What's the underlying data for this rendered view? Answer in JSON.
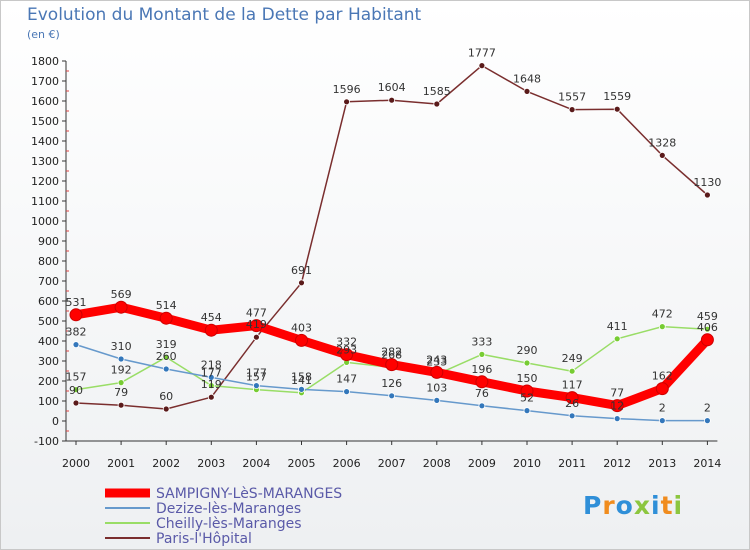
{
  "chart_data": {
    "type": "line",
    "title": "Evolution du Montant de la Dette par Habitant",
    "ylabel": "(en €)",
    "xlabel": "",
    "x": [
      "2000",
      "2001",
      "2002",
      "2003",
      "2004",
      "2005",
      "2006",
      "2007",
      "2008",
      "2009",
      "2010",
      "2011",
      "2012",
      "2013",
      "2014"
    ],
    "ylim": [
      -100,
      1800
    ],
    "yticks": [
      -100,
      0,
      100,
      200,
      300,
      400,
      500,
      600,
      700,
      800,
      900,
      1000,
      1100,
      1200,
      1300,
      1400,
      1500,
      1600,
      1700,
      1800
    ],
    "grid": false,
    "legend_position": "bottom-left",
    "series": [
      {
        "name": "SAMPIGNY-LèS-MARANGES",
        "color": "#ff0000",
        "marker": "#cc0000",
        "values": [
          531,
          569,
          514,
          454,
          477,
          403,
          332,
          282,
          243,
          196,
          150,
          117,
          77,
          162,
          406
        ]
      },
      {
        "name": "Dezize-lès-Maranges",
        "color": "#6699cc",
        "marker": "#3377bb",
        "values": [
          382,
          310,
          260,
          218,
          177,
          158,
          147,
          126,
          103,
          76,
          52,
          26,
          12,
          2,
          2
        ]
      },
      {
        "name": "Cheilly-lès-Maranges",
        "color": "#99dd66",
        "marker": "#77cc33",
        "values": [
          157,
          192,
          319,
          177,
          157,
          141,
          293,
          268,
          233,
          333,
          290,
          249,
          411,
          472,
          459
        ]
      },
      {
        "name": "Paris-l'Hôpital",
        "color": "#7a2e2e",
        "marker": "#5a1a1a",
        "values": [
          90,
          79,
          60,
          119,
          419,
          691,
          1596,
          1604,
          1585,
          1777,
          1648,
          1557,
          1559,
          1328,
          1130
        ]
      }
    ]
  },
  "logo": {
    "text": "Proxiti",
    "colors": [
      "#2f8fd8",
      "#f08c1e",
      "#2f8fd8",
      "#8cc63f",
      "#2f8fd8",
      "#f08c1e",
      "#8cc63f"
    ]
  }
}
